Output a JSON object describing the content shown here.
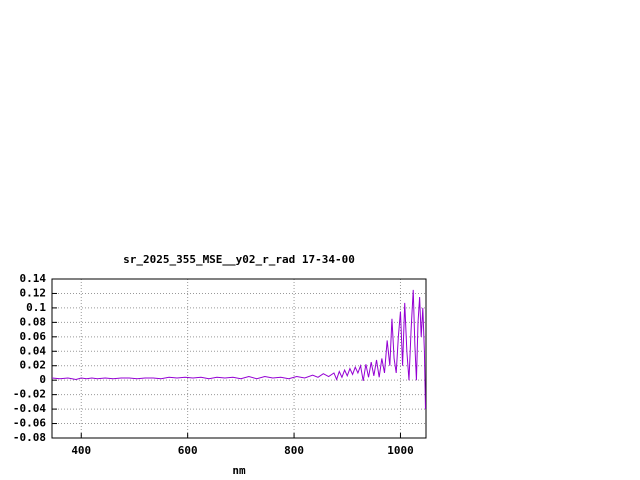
{
  "chart_data": {
    "type": "line",
    "title": "sr_2025_355_MSE__y02_r_rad 17-34-00",
    "x_label": "nm",
    "x": [
      345,
      360,
      375,
      390,
      400,
      410,
      420,
      430,
      445,
      460,
      475,
      490,
      505,
      520,
      535,
      550,
      565,
      580,
      595,
      610,
      625,
      640,
      655,
      670,
      685,
      700,
      715,
      730,
      745,
      760,
      775,
      790,
      805,
      820,
      835,
      845,
      855,
      865,
      875,
      880,
      885,
      890,
      895,
      900,
      905,
      910,
      915,
      920,
      925,
      930,
      935,
      940,
      945,
      950,
      955,
      960,
      965,
      970,
      975,
      980,
      984,
      988,
      992,
      996,
      1000,
      1004,
      1008,
      1012,
      1016,
      1020,
      1024,
      1027,
      1030,
      1033,
      1036,
      1039,
      1042,
      1045,
      1047
    ],
    "series": [
      {
        "name": "sr_2025_355_MSE__y02_r_rad",
        "color": "#9400d3",
        "values": [
          0.003,
          0.002,
          0.003,
          0.001,
          0.003,
          0.002,
          0.003,
          0.002,
          0.003,
          0.002,
          0.003,
          0.003,
          0.002,
          0.003,
          0.003,
          0.002,
          0.004,
          0.003,
          0.004,
          0.003,
          0.004,
          0.002,
          0.004,
          0.003,
          0.004,
          0.002,
          0.005,
          0.002,
          0.005,
          0.003,
          0.004,
          0.002,
          0.005,
          0.003,
          0.007,
          0.004,
          0.009,
          0.005,
          0.01,
          0.001,
          0.012,
          0.004,
          0.014,
          0.006,
          0.016,
          0.008,
          0.018,
          0.01,
          0.02,
          -0.001,
          0.022,
          0.004,
          0.025,
          0.006,
          0.028,
          0.004,
          0.03,
          0.01,
          0.055,
          0.02,
          0.085,
          0.03,
          0.01,
          0.06,
          0.095,
          0.02,
          0.107,
          0.04,
          0.0,
          0.07,
          0.125,
          0.05,
          0.0,
          0.08,
          0.115,
          0.06,
          0.1,
          0.04,
          -0.04
        ]
      }
    ],
    "xlim": [
      345,
      1048
    ],
    "ylim": [
      -0.08,
      0.14
    ],
    "xticks": [
      400,
      600,
      800,
      1000
    ],
    "yticks": [
      0.14,
      0.12,
      0.1,
      0.08,
      0.06,
      0.04,
      0.02,
      0,
      -0.02,
      -0.04,
      -0.06,
      -0.08
    ],
    "grid": true
  }
}
